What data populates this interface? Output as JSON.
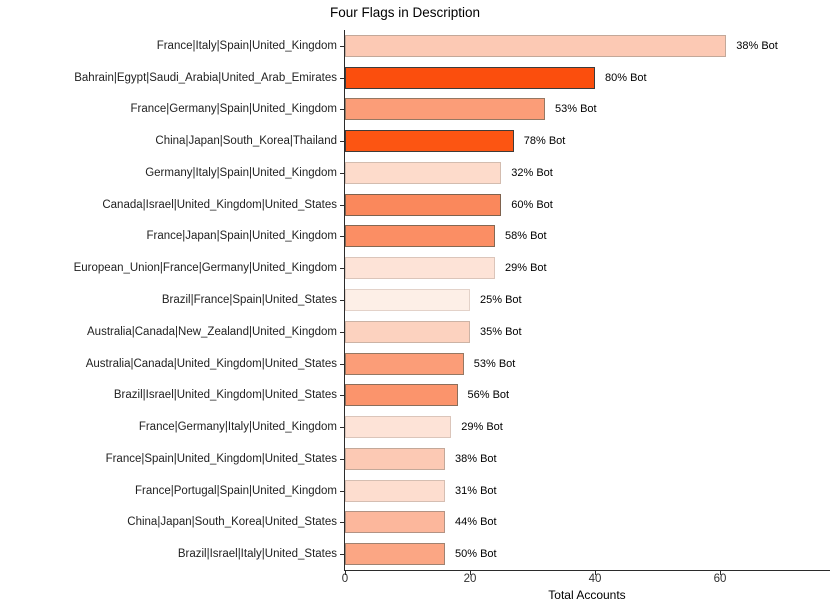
{
  "chart_data": {
    "type": "bar",
    "orientation": "horizontal",
    "title": "Four Flags in Description",
    "xlabel": "Total Accounts",
    "ylabel": "",
    "xticks": [
      0,
      20,
      40,
      60
    ],
    "xlim": [
      0,
      77.5
    ],
    "grid": false,
    "legend_position": "none",
    "bars": [
      {
        "label": "France|Italy|Spain|United_Kingdom",
        "value": 61,
        "bot_pct": 38,
        "annotation": "38% Bot",
        "fill": "#FCC9B4",
        "border": "#C3A899"
      },
      {
        "label": "Bahrain|Egypt|Saudi_Arabia|United_Arab_Emirates",
        "value": 40,
        "bot_pct": 80,
        "annotation": "80% Bot",
        "fill": "#FB4E0D",
        "border": "#3B3B3B"
      },
      {
        "label": "France|Germany|Spain|United_Kingdom",
        "value": 32,
        "bot_pct": 53,
        "annotation": "53% Bot",
        "fill": "#FB9D78",
        "border": "#957863"
      },
      {
        "label": "China|Japan|South_Korea|Thailand",
        "value": 27,
        "bot_pct": 78,
        "annotation": "78% Bot",
        "fill": "#FC5512",
        "border": "#403C38"
      },
      {
        "label": "Germany|Italy|Spain|United_Kingdom",
        "value": 25,
        "bot_pct": 32,
        "annotation": "32% Bot",
        "fill": "#FDDBCB",
        "border": "#D3BCAF"
      },
      {
        "label": "Canada|Israel|United_Kingdom|United_States",
        "value": 25,
        "bot_pct": 60,
        "annotation": "60% Bot",
        "fill": "#FA885C",
        "border": "#7E624E"
      },
      {
        "label": "France|Japan|Spain|United_Kingdom",
        "value": 24,
        "bot_pct": 58,
        "annotation": "58% Bot",
        "fill": "#FB8E64",
        "border": "#846853"
      },
      {
        "label": "European_Union|France|Germany|United_Kingdom",
        "value": 24,
        "bot_pct": 29,
        "annotation": "29% Bot",
        "fill": "#FDE3D7",
        "border": "#DBC5BA"
      },
      {
        "label": "Brazil|France|Spain|United_States",
        "value": 20,
        "bot_pct": 25,
        "annotation": "25% Bot",
        "fill": "#FDEFE7",
        "border": "#E3D2C9"
      },
      {
        "label": "Australia|Canada|New_Zealand|United_Kingdom",
        "value": 20,
        "bot_pct": 35,
        "annotation": "35% Bot",
        "fill": "#FCD2BF",
        "border": "#CCB3A5"
      },
      {
        "label": "Australia|Canada|United_Kingdom|United_States",
        "value": 19,
        "bot_pct": 53,
        "annotation": "53% Bot",
        "fill": "#FB9D78",
        "border": "#957863"
      },
      {
        "label": "Brazil|Israel|United_Kingdom|United_States",
        "value": 18,
        "bot_pct": 56,
        "annotation": "56% Bot",
        "fill": "#FB946C",
        "border": "#8B6E5B"
      },
      {
        "label": "France|Germany|Italy|United_Kingdom",
        "value": 17,
        "bot_pct": 29,
        "annotation": "29% Bot",
        "fill": "#FDE3D7",
        "border": "#DBC5BA"
      },
      {
        "label": "France|Spain|United_Kingdom|United_States",
        "value": 16,
        "bot_pct": 38,
        "annotation": "38% Bot",
        "fill": "#FCC9B4",
        "border": "#C3A899"
      },
      {
        "label": "France|Portugal|Spain|United_Kingdom",
        "value": 16,
        "bot_pct": 31,
        "annotation": "31% Bot",
        "fill": "#FDDDCF",
        "border": "#D5BEB2"
      },
      {
        "label": "China|Japan|South_Korea|United_States",
        "value": 16,
        "bot_pct": 44,
        "annotation": "44% Bot",
        "fill": "#FCB79C",
        "border": "#B39384"
      },
      {
        "label": "Brazil|Israel|Italy|United_States",
        "value": 16,
        "bot_pct": 50,
        "annotation": "50% Bot",
        "fill": "#FBA684",
        "border": "#9F8271"
      }
    ],
    "colors": {
      "axis": "#2b2b2b",
      "text": "#000000",
      "background": "#ffffff"
    }
  }
}
